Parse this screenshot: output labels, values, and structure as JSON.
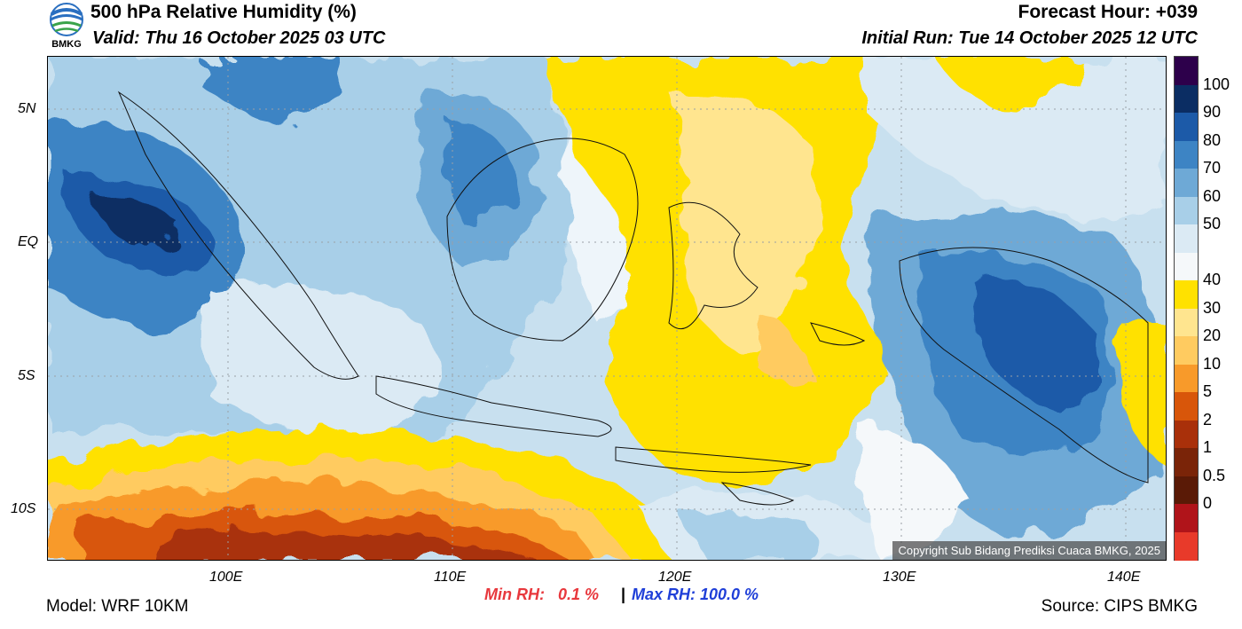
{
  "header": {
    "title": "500 hPa Relative Humidity (%)",
    "valid": "Valid: Thu 16 October 2025 03 UTC",
    "forecast_hour": "Forecast Hour: +039",
    "initial_run": "Initial Run: Tue 14 October 2025 12 UTC"
  },
  "logo": {
    "text": "BMKG",
    "icon": "bmkg-logo-icon"
  },
  "map": {
    "lat_labels": [
      "5N",
      "EQ",
      "5S",
      "10S"
    ],
    "lon_labels": [
      "100E",
      "110E",
      "120E",
      "130E",
      "140E"
    ],
    "copyright": "Copyright Sub Bidang Prediksi Cuaca BMKG, 2025"
  },
  "colorbar": {
    "labels": [
      "100",
      "90",
      "80",
      "70",
      "60",
      "50",
      "40",
      "30",
      "20",
      "10",
      "5",
      "2",
      "1",
      "0.5",
      "0"
    ],
    "colors": [
      "#2d004b",
      "#0b2d63",
      "#1c5aa8",
      "#3d84c4",
      "#6ea9d6",
      "#a8cfe8",
      "#dbeaf4",
      "#f5f8fa",
      "#ffe100",
      "#ffe58f",
      "#ffcb60",
      "#f89a2a",
      "#d8560a",
      "#a9300a",
      "#7a2408",
      "#5a1a06",
      "#b0141a",
      "#e83a2a"
    ]
  },
  "stats": {
    "min": "Min RH:   0.1 %",
    "separator": "|",
    "max": "Max RH: 100.0 %",
    "min_color": "#e8383d",
    "max_color": "#1f3fd8"
  },
  "footer": {
    "model": "Model: WRF 10KM",
    "source": "Source: CIPS BMKG"
  }
}
